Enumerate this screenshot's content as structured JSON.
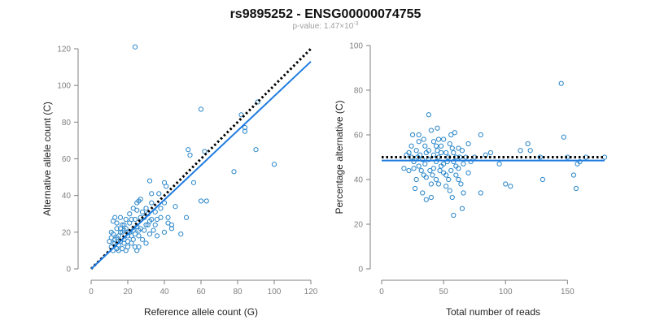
{
  "header": {
    "title": "rs9895252 - ENSG00000074755",
    "pvalue_label": "p-value: 1.47×10",
    "pvalue_exponent": "-3"
  },
  "colors": {
    "accent": "#1e7be0",
    "point_stroke": "#2a86c9",
    "axis": "#7f7f7f",
    "text": "#222222",
    "subtitle": "#a0a0a0",
    "reference_line": "#000000"
  },
  "chart_data": [
    {
      "type": "scatter",
      "xlabel": "Reference allele count (G)",
      "ylabel": "Alternative allele count (C)",
      "xlim": [
        0,
        120
      ],
      "ylim": [
        0,
        120
      ],
      "xticks": [
        0,
        20,
        40,
        60,
        80,
        100,
        120
      ],
      "yticks": [
        0,
        20,
        40,
        60,
        80,
        100,
        120
      ],
      "grid": false,
      "points": [
        [
          24,
          121
        ],
        [
          60,
          87
        ],
        [
          82,
          84
        ],
        [
          91,
          91
        ],
        [
          84,
          77
        ],
        [
          84,
          75
        ],
        [
          90,
          65
        ],
        [
          100,
          57
        ],
        [
          78,
          53
        ],
        [
          53,
          65
        ],
        [
          54,
          62
        ],
        [
          62,
          64
        ],
        [
          60,
          37
        ],
        [
          63,
          37
        ],
        [
          56,
          47
        ],
        [
          52,
          28
        ],
        [
          49,
          19
        ],
        [
          44,
          22
        ],
        [
          40,
          47
        ],
        [
          41,
          45
        ],
        [
          37,
          41
        ],
        [
          40,
          36
        ],
        [
          32,
          48
        ],
        [
          33,
          41
        ],
        [
          33,
          36
        ],
        [
          30,
          33
        ],
        [
          31,
          30
        ],
        [
          29,
          28
        ],
        [
          27,
          38
        ],
        [
          26,
          37
        ],
        [
          25,
          36
        ],
        [
          25,
          32
        ],
        [
          28,
          31
        ],
        [
          27,
          28
        ],
        [
          24,
          27
        ],
        [
          22,
          27
        ],
        [
          21,
          25
        ],
        [
          19,
          27
        ],
        [
          18,
          24
        ],
        [
          18,
          21
        ],
        [
          16,
          20
        ],
        [
          14,
          22
        ],
        [
          12,
          19
        ],
        [
          11,
          17
        ],
        [
          10,
          15
        ],
        [
          11,
          12
        ],
        [
          12,
          10
        ],
        [
          14,
          11
        ],
        [
          15,
          13
        ],
        [
          16,
          15
        ],
        [
          13,
          14
        ],
        [
          20,
          15
        ],
        [
          22,
          14
        ],
        [
          23,
          16
        ],
        [
          24,
          12
        ],
        [
          26,
          12
        ],
        [
          19,
          10
        ],
        [
          17,
          11
        ],
        [
          15,
          18
        ],
        [
          13,
          16
        ],
        [
          12,
          14
        ],
        [
          14,
          17
        ],
        [
          16,
          22
        ],
        [
          17,
          24
        ],
        [
          19,
          22
        ],
        [
          21,
          20
        ],
        [
          23,
          21
        ],
        [
          25,
          23
        ],
        [
          27,
          22
        ],
        [
          29,
          21
        ],
        [
          31,
          24
        ],
        [
          33,
          27
        ],
        [
          35,
          24
        ],
        [
          36,
          27
        ],
        [
          38,
          28
        ],
        [
          30,
          14
        ],
        [
          32,
          19
        ],
        [
          34,
          21
        ],
        [
          36,
          18
        ],
        [
          40,
          20
        ],
        [
          42,
          25
        ],
        [
          42,
          28
        ],
        [
          38,
          33
        ],
        [
          35,
          31
        ],
        [
          46,
          34
        ],
        [
          44,
          24
        ],
        [
          26,
          18
        ],
        [
          28,
          16
        ],
        [
          25,
          10
        ],
        [
          20,
          12
        ],
        [
          18,
          14
        ],
        [
          22,
          18
        ],
        [
          17,
          20
        ],
        [
          15,
          10
        ],
        [
          11,
          20
        ],
        [
          12,
          26
        ],
        [
          14,
          25
        ],
        [
          16,
          28
        ],
        [
          13,
          28
        ],
        [
          21,
          30
        ],
        [
          23,
          33
        ],
        [
          30,
          24
        ],
        [
          32,
          26
        ],
        [
          20,
          18
        ],
        [
          18,
          16
        ],
        [
          24,
          19
        ],
        [
          26,
          21
        ]
      ],
      "fit_line": [
        [
          0,
          0
        ],
        [
          120,
          113
        ]
      ],
      "reference_line": [
        [
          0,
          0
        ],
        [
          120,
          120
        ]
      ]
    },
    {
      "type": "scatter",
      "xlabel": "Total number of reads",
      "ylabel": "Percentage alternative (C)",
      "xlim": [
        0,
        180
      ],
      "ylim": [
        0,
        100
      ],
      "xticks": [
        0,
        50,
        100,
        150
      ],
      "yticks": [
        0,
        20,
        40,
        60,
        80,
        100
      ],
      "grid": false,
      "points": [
        [
          145,
          83
        ],
        [
          147,
          59
        ],
        [
          38,
          69
        ],
        [
          45,
          63
        ],
        [
          40,
          62
        ],
        [
          25,
          60
        ],
        [
          30,
          57
        ],
        [
          35,
          55
        ],
        [
          28,
          53
        ],
        [
          22,
          52
        ],
        [
          24,
          50
        ],
        [
          26,
          48
        ],
        [
          30,
          46
        ],
        [
          32,
          44
        ],
        [
          34,
          42
        ],
        [
          28,
          40
        ],
        [
          27,
          36
        ],
        [
          33,
          34
        ],
        [
          36,
          31
        ],
        [
          40,
          32
        ],
        [
          42,
          45
        ],
        [
          44,
          48
        ],
        [
          46,
          50
        ],
        [
          48,
          55
        ],
        [
          50,
          58
        ],
        [
          52,
          52
        ],
        [
          55,
          56
        ],
        [
          58,
          52
        ],
        [
          56,
          44
        ],
        [
          54,
          40
        ],
        [
          52,
          42
        ],
        [
          60,
          46
        ],
        [
          62,
          40
        ],
        [
          64,
          38
        ],
        [
          66,
          34
        ],
        [
          65,
          27
        ],
        [
          58,
          24
        ],
        [
          60,
          50
        ],
        [
          62,
          54
        ],
        [
          65,
          53
        ],
        [
          68,
          50
        ],
        [
          70,
          56
        ],
        [
          75,
          50
        ],
        [
          80,
          60
        ],
        [
          80,
          34
        ],
        [
          88,
          52
        ],
        [
          95,
          47
        ],
        [
          100,
          38
        ],
        [
          104,
          37
        ],
        [
          112,
          53
        ],
        [
          118,
          56
        ],
        [
          120,
          53
        ],
        [
          128,
          50
        ],
        [
          130,
          40
        ],
        [
          150,
          50
        ],
        [
          155,
          42
        ],
        [
          157,
          36
        ],
        [
          158,
          47
        ],
        [
          160,
          48
        ],
        [
          165,
          50
        ],
        [
          180,
          50
        ],
        [
          35,
          47
        ],
        [
          38,
          49
        ],
        [
          42,
          51
        ],
        [
          45,
          53
        ],
        [
          48,
          46
        ],
        [
          50,
          43
        ],
        [
          52,
          37
        ],
        [
          55,
          35
        ],
        [
          57,
          32
        ],
        [
          44,
          40
        ],
        [
          46,
          38
        ],
        [
          40,
          38
        ],
        [
          36,
          41
        ],
        [
          33,
          49
        ],
        [
          31,
          51
        ],
        [
          29,
          50
        ],
        [
          26,
          45
        ],
        [
          24,
          55
        ],
        [
          20,
          51
        ],
        [
          18,
          45
        ],
        [
          22,
          44
        ],
        [
          38,
          53
        ],
        [
          42,
          57
        ],
        [
          46,
          58
        ],
        [
          50,
          47
        ],
        [
          54,
          50
        ],
        [
          58,
          48
        ],
        [
          62,
          45
        ],
        [
          30,
          60
        ],
        [
          34,
          58
        ],
        [
          36,
          52
        ],
        [
          48,
          52
        ],
        [
          56,
          60
        ],
        [
          59,
          61
        ],
        [
          66,
          47
        ],
        [
          60,
          42
        ],
        [
          44,
          55
        ],
        [
          41,
          42
        ],
        [
          39,
          44
        ],
        [
          47,
          44
        ],
        [
          53,
          48
        ],
        [
          57,
          54
        ],
        [
          63,
          50
        ],
        [
          70,
          43
        ],
        [
          72,
          48
        ],
        [
          84,
          51
        ]
      ],
      "fit_line": [
        [
          0,
          48.5
        ],
        [
          180,
          48.5
        ]
      ],
      "reference_line": [
        [
          0,
          50
        ],
        [
          180,
          50
        ]
      ]
    }
  ]
}
